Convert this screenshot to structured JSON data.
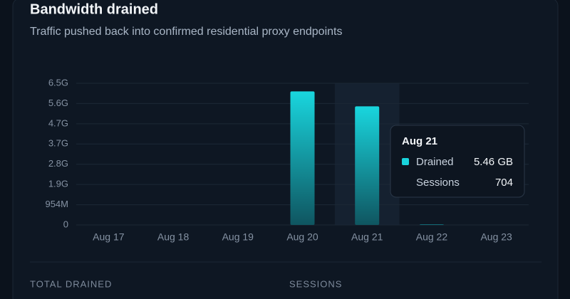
{
  "chart_data": {
    "type": "bar",
    "title": "Bandwidth drained",
    "subtitle": "Traffic pushed back into confirmed residential proxy endpoints",
    "categories": [
      "Aug 17",
      "Aug 18",
      "Aug 19",
      "Aug 20",
      "Aug 21",
      "Aug 22",
      "Aug 23"
    ],
    "series": [
      {
        "name": "Drained",
        "color": "#19d3dc",
        "values": [
          0,
          0,
          0,
          6600000000,
          5862000000,
          20000000,
          0
        ]
      }
    ],
    "ylim": [
      0,
      7000000000
    ],
    "yticks": [
      0,
      {
        "value": 1000000000,
        "label": "954M"
      },
      {
        "value": 2000000000,
        "label": "1.9G"
      },
      {
        "value": 3000000000,
        "label": "2.8G"
      },
      {
        "value": 4000000000,
        "label": "3.7G"
      },
      {
        "value": 5000000000,
        "label": "4.7G"
      },
      {
        "value": 6000000000,
        "label": "5.6G"
      },
      {
        "value": 7000000000,
        "label": "6.5G"
      }
    ],
    "grid": true,
    "highlight": 4,
    "tooltip": {
      "title": "Aug 21",
      "rows": [
        {
          "label": "Drained",
          "value_label": "5.46 GB"
        },
        {
          "label": "Sessions",
          "value": 704
        }
      ]
    },
    "stats": [
      "TOTAL DRAINED",
      "SESSIONS"
    ]
  }
}
